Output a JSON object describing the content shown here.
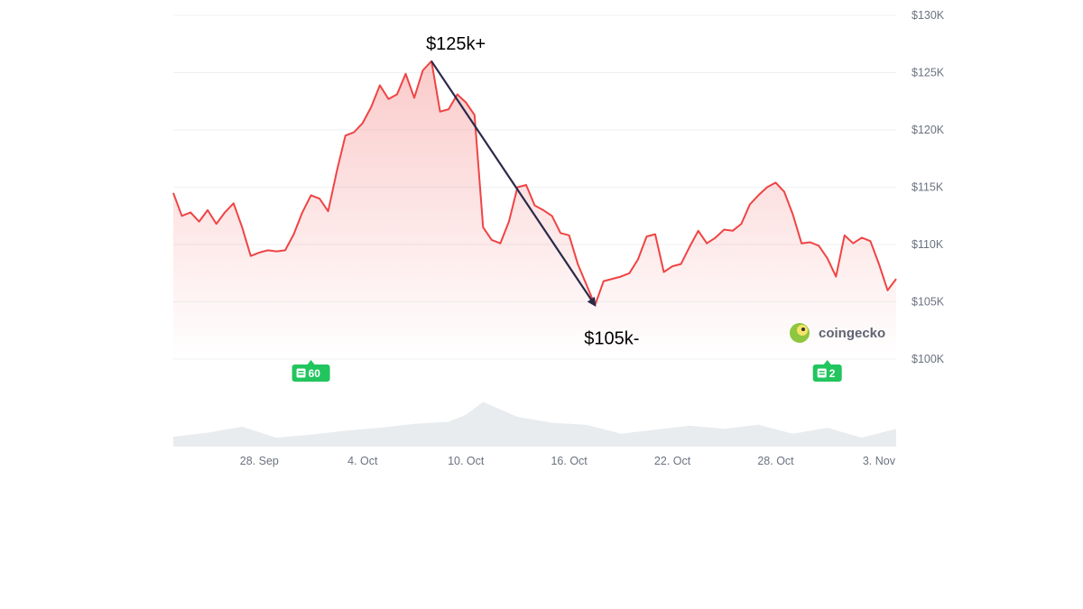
{
  "chart_data": {
    "type": "line",
    "title": "",
    "xlabel": "",
    "ylabel": "",
    "ylim": [
      100000,
      130000
    ],
    "y_ticks": [
      "$100K",
      "$105K",
      "$110K",
      "$115K",
      "$120K",
      "$125K",
      "$130K"
    ],
    "y_tick_values": [
      100000,
      105000,
      110000,
      115000,
      120000,
      125000,
      130000
    ],
    "x_range": [
      "2025-09-23",
      "2025-11-04"
    ],
    "x_ticks": [
      "28. Sep",
      "4. Oct",
      "10. Oct",
      "16. Oct",
      "22. Oct",
      "28. Oct",
      "3. Nov"
    ],
    "x_tick_dates": [
      "2025-09-28",
      "2025-10-04",
      "2025-10-10",
      "2025-10-16",
      "2025-10-22",
      "2025-10-28",
      "2025-11-03"
    ],
    "grid": true,
    "series": [
      {
        "color": "#ef4444",
        "x": [
          "2025-09-23T00:00",
          "2025-09-23T12:00",
          "2025-09-24T00:00",
          "2025-09-24T12:00",
          "2025-09-25T00:00",
          "2025-09-25T12:00",
          "2025-09-26T00:00",
          "2025-09-26T12:00",
          "2025-09-27T00:00",
          "2025-09-27T12:00",
          "2025-09-28T00:00",
          "2025-09-28T12:00",
          "2025-09-29T00:00",
          "2025-09-29T12:00",
          "2025-09-30T00:00",
          "2025-09-30T12:00",
          "2025-10-01T00:00",
          "2025-10-01T12:00",
          "2025-10-02T00:00",
          "2025-10-02T12:00",
          "2025-10-03T00:00",
          "2025-10-03T12:00",
          "2025-10-04T00:00",
          "2025-10-04T12:00",
          "2025-10-05T00:00",
          "2025-10-05T12:00",
          "2025-10-06T00:00",
          "2025-10-06T12:00",
          "2025-10-07T00:00",
          "2025-10-07T12:00",
          "2025-10-08T00:00",
          "2025-10-08T12:00",
          "2025-10-09T00:00",
          "2025-10-09T12:00",
          "2025-10-10T00:00",
          "2025-10-10T12:00",
          "2025-10-11T00:00",
          "2025-10-11T12:00",
          "2025-10-12T00:00",
          "2025-10-12T12:00",
          "2025-10-13T00:00",
          "2025-10-13T12:00",
          "2025-10-14T00:00",
          "2025-10-14T12:00",
          "2025-10-15T00:00",
          "2025-10-15T12:00",
          "2025-10-16T00:00",
          "2025-10-16T12:00",
          "2025-10-17T00:00",
          "2025-10-17T12:00",
          "2025-10-18T00:00",
          "2025-10-18T12:00",
          "2025-10-19T00:00",
          "2025-10-19T12:00",
          "2025-10-20T00:00",
          "2025-10-20T12:00",
          "2025-10-21T00:00",
          "2025-10-21T12:00",
          "2025-10-22T00:00",
          "2025-10-22T12:00",
          "2025-10-23T00:00",
          "2025-10-23T12:00",
          "2025-10-24T00:00",
          "2025-10-24T12:00",
          "2025-10-25T00:00",
          "2025-10-25T12:00",
          "2025-10-26T00:00",
          "2025-10-26T12:00",
          "2025-10-27T00:00",
          "2025-10-27T12:00",
          "2025-10-28T00:00",
          "2025-10-28T12:00",
          "2025-10-29T00:00",
          "2025-10-29T12:00",
          "2025-10-30T00:00",
          "2025-10-30T12:00",
          "2025-10-31T00:00",
          "2025-10-31T12:00",
          "2025-11-01T00:00",
          "2025-11-01T12:00",
          "2025-11-02T00:00",
          "2025-11-02T12:00",
          "2025-11-03T00:00",
          "2025-11-03T12:00",
          "2025-11-04T00:00"
        ],
        "values": [
          114500,
          112500,
          112800,
          112000,
          113000,
          111800,
          112800,
          113600,
          111500,
          109000,
          109300,
          109500,
          109400,
          109500,
          110900,
          112800,
          114300,
          114000,
          112900,
          116400,
          119500,
          119800,
          120600,
          122000,
          123900,
          122700,
          123100,
          124900,
          122800,
          125200,
          126000,
          121600,
          121800,
          123100,
          122400,
          121300,
          111500,
          110400,
          110100,
          112000,
          115000,
          115200,
          113400,
          113000,
          112500,
          111000,
          110800,
          108300,
          106500,
          104700,
          106800,
          107000,
          107200,
          107500,
          108700,
          110700,
          110900,
          107600,
          108100,
          108300,
          109800,
          111200,
          110100,
          110600,
          111300,
          111200,
          111800,
          113500,
          114300,
          115000,
          115400,
          114600,
          112600,
          110100,
          110200,
          109900,
          108800,
          107200,
          110800,
          110100,
          110600,
          110300,
          108300,
          106000,
          107000
        ]
      }
    ],
    "volume": {
      "color": "#e8ecef",
      "x": [
        "2025-09-23",
        "2025-09-25",
        "2025-09-27",
        "2025-09-29",
        "2025-10-01",
        "2025-10-03",
        "2025-10-05",
        "2025-10-07",
        "2025-10-09",
        "2025-10-10",
        "2025-10-11",
        "2025-10-13",
        "2025-10-15",
        "2025-10-17",
        "2025-10-19",
        "2025-10-21",
        "2025-10-23",
        "2025-10-25",
        "2025-10-27",
        "2025-10-29",
        "2025-10-31",
        "2025-11-02",
        "2025-11-04"
      ],
      "values": [
        10,
        14,
        20,
        9,
        12,
        16,
        19,
        23,
        25,
        32,
        45,
        30,
        24,
        22,
        13,
        17,
        21,
        18,
        22,
        13,
        19,
        9,
        18
      ]
    },
    "annotations": [
      {
        "text": "$125k+",
        "x": "2025-10-08T00:00",
        "y": 126000
      },
      {
        "text": "$105k-",
        "x": "2025-10-17T12:00",
        "y": 104700
      }
    ],
    "arrow": {
      "from": {
        "x": "2025-10-08T00:00",
        "y": 126000
      },
      "to": {
        "x": "2025-10-17T12:00",
        "y": 104700
      },
      "color": "#2a2a4a"
    },
    "news_badges": [
      {
        "label": "60",
        "x": "2025-10-01",
        "color": "#22c55e"
      },
      {
        "label": "2",
        "x": "2025-10-31",
        "color": "#22c55e"
      }
    ]
  },
  "brand": {
    "name": "coingecko"
  }
}
